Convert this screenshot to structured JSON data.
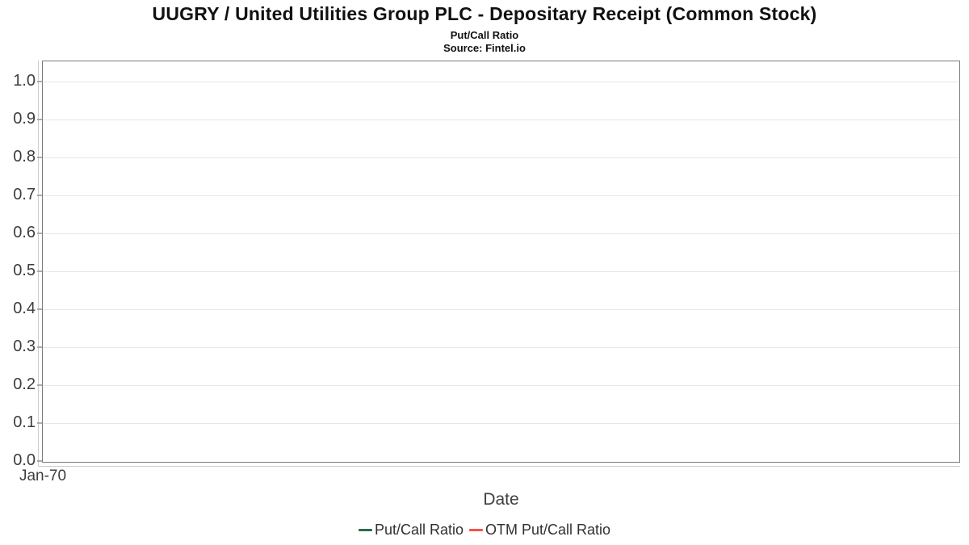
{
  "chart_data": {
    "type": "line",
    "title": "UUGRY / United Utilities Group PLC - Depositary Receipt (Common Stock)",
    "subtitle": "Put/Call Ratio",
    "source": "Source: Fintel.io",
    "xlabel": "Date",
    "x_tick_labels": [
      "Jan-70"
    ],
    "y_tick_labels": [
      "0.0",
      "0.1",
      "0.2",
      "0.3",
      "0.4",
      "0.5",
      "0.6",
      "0.7",
      "0.8",
      "0.9",
      "1.0"
    ],
    "ylim": [
      0.0,
      1.05
    ],
    "grid": "horizontal-only",
    "legend_position": "bottom-center",
    "colors": {
      "gridline": "#e7e7e7",
      "axis_border": "#7b7b7b",
      "tick_text": "#3d3d3d"
    },
    "series": [
      {
        "name": "Put/Call Ratio",
        "color": "#2d6a4a",
        "x": [],
        "y": []
      },
      {
        "name": "OTM Put/Call Ratio",
        "color": "#f8524b",
        "x": [],
        "y": []
      }
    ]
  }
}
